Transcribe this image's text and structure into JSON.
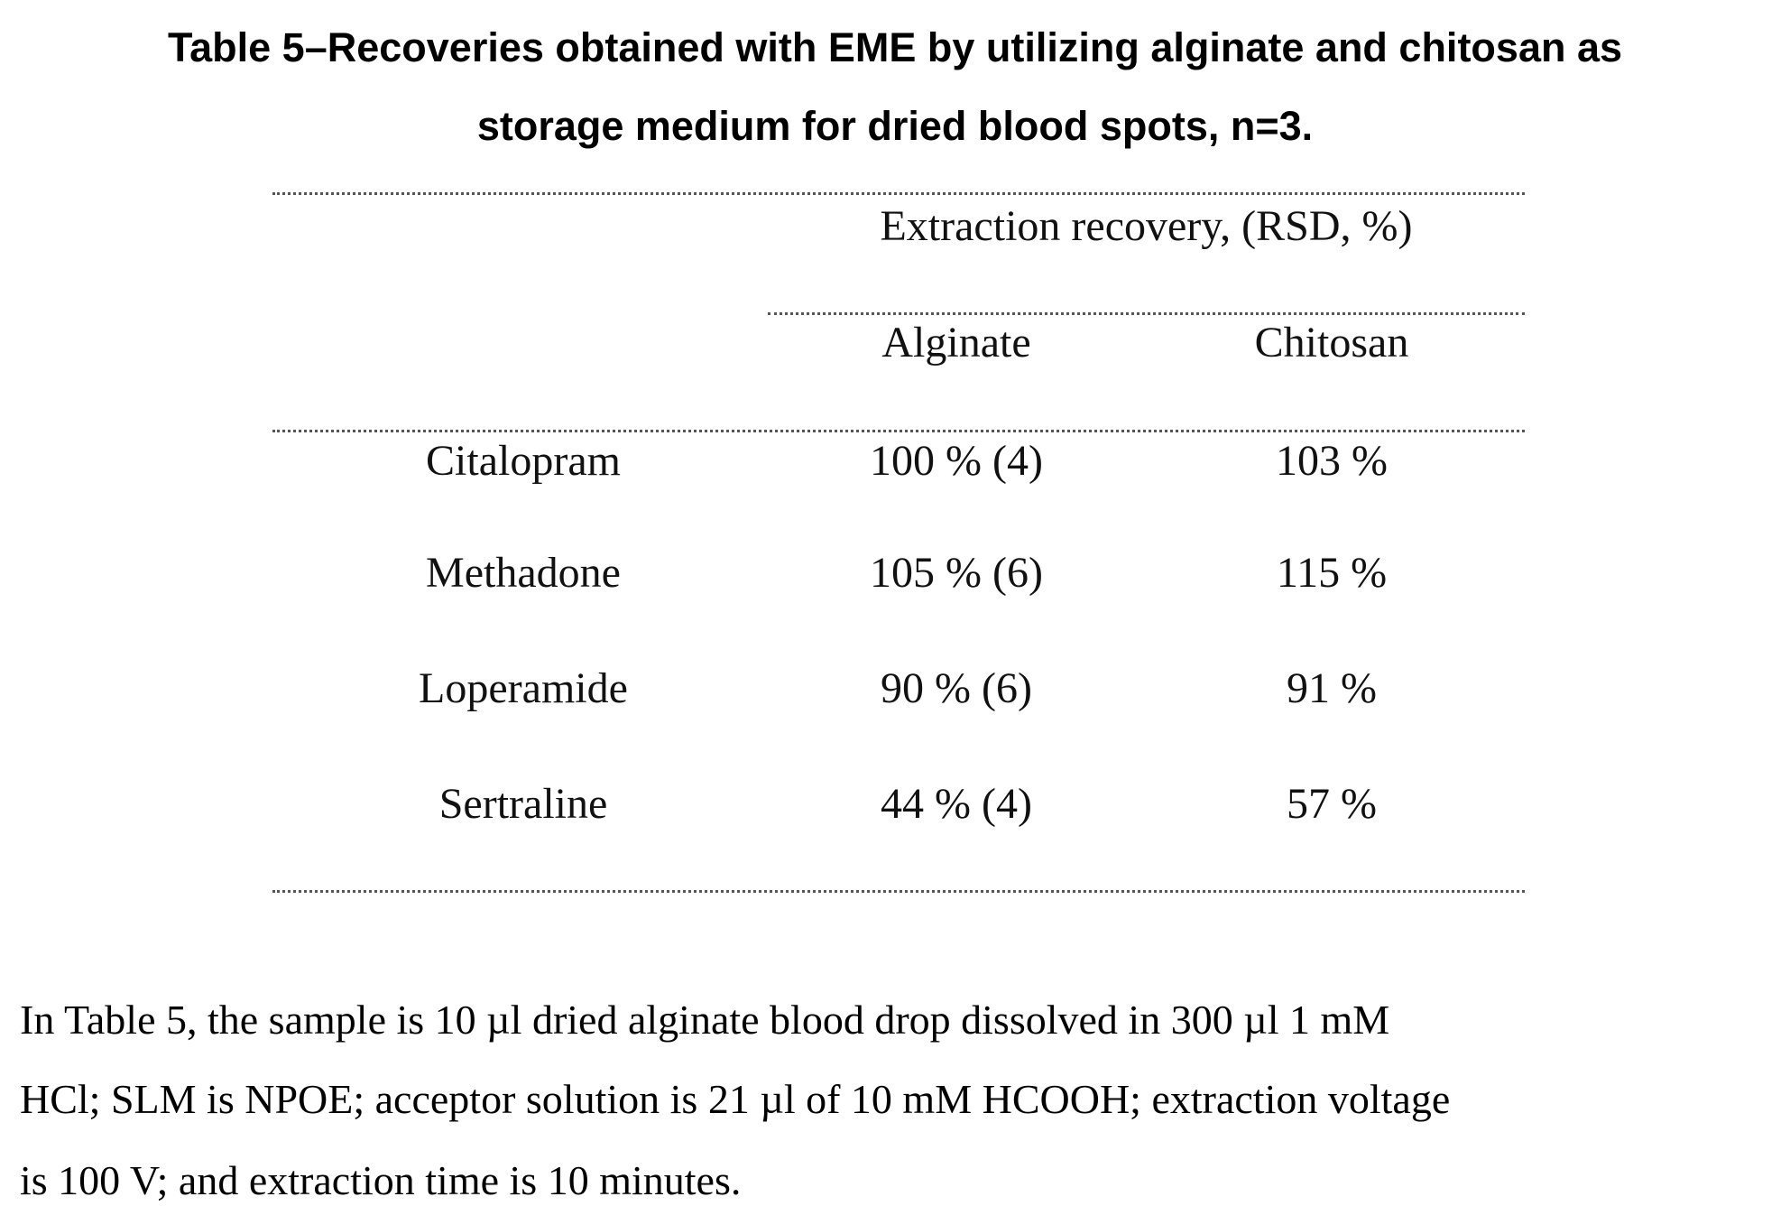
{
  "title": {
    "line1": "Table 5–Recoveries obtained with EME by utilizing alginate and chitosan as",
    "line2": "storage medium for dried blood spots, n=3."
  },
  "table": {
    "spanning_header": "Extraction recovery, (RSD, %)",
    "columns": [
      "Alginate",
      "Chitosan"
    ],
    "rows": [
      {
        "drug": "Citalopram",
        "alginate": "100 % (4)",
        "chitosan": "103 %"
      },
      {
        "drug": "Methadone",
        "alginate": "105 % (6)",
        "chitosan": "115 %"
      },
      {
        "drug": "Loperamide",
        "alginate": "90 % (6)",
        "chitosan": "91 %"
      },
      {
        "drug": "Sertraline",
        "alginate": "44 % (4)",
        "chitosan": "57 %"
      }
    ]
  },
  "note": {
    "line1": "In Table 5, the sample is 10 µl dried alginate blood drop dissolved in 300 µl 1 mM",
    "line2": "HCl; SLM is NPOE; acceptor solution is 21 µl of 10 mM HCOOH; extraction voltage",
    "line3": "is 100 V; and extraction time is 10 minutes."
  }
}
